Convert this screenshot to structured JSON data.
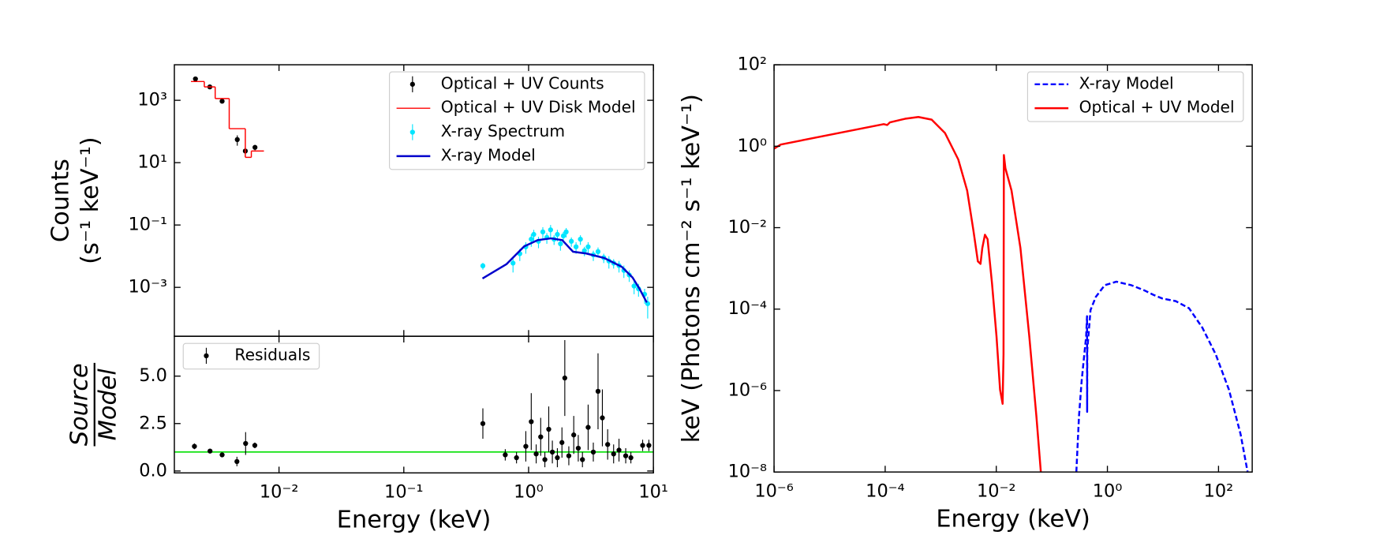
{
  "chart_data": [
    {
      "type": "errorbar",
      "xscale": "log",
      "yscale": "log",
      "xlim": [
        0.00145,
        10
      ],
      "ylim": [
        2.7e-05,
        13800
      ],
      "xticks": [
        0.01,
        0.1,
        1,
        10
      ],
      "yticks": [
        {
          "value": 0.001,
          "label": "10⁻³"
        },
        {
          "value": 0.1,
          "label": "10⁻¹"
        },
        {
          "value": 10,
          "label": "10¹"
        },
        {
          "value": 1000,
          "label": "10³"
        }
      ],
      "ylabel": [
        "Counts",
        "(s⁻¹ keV⁻¹)"
      ],
      "legend": "upper right",
      "series": [
        {
          "name": "Optical + UV Counts",
          "kind": "points",
          "color": "#000000",
          "x": [
            0.00214,
            0.00279,
            0.0035,
            0.00463,
            0.00537,
            0.00642
          ],
          "values": [
            4850,
            2690,
            935,
            55,
            23.6,
            31
          ],
          "yerr": [
            600,
            300,
            100,
            20,
            8,
            6
          ]
        },
        {
          "name": "Optical + UV Disk Model",
          "kind": "step",
          "color": "#ff0000",
          "bins": [
            0.00197,
            0.00252,
            0.00308,
            0.00399,
            0.00537,
            0.006,
            0.00757
          ],
          "values": [
            4000,
            2690,
            1140,
            123,
            14.8,
            23.6
          ]
        },
        {
          "name": "X-ray Spectrum",
          "kind": "points",
          "color": "#00e5ff",
          "x": [
            0.43,
            0.75,
            0.85,
            0.95,
            1.05,
            1.1,
            1.2,
            1.3,
            1.4,
            1.5,
            1.6,
            1.7,
            1.8,
            1.9,
            2.0,
            2.2,
            2.4,
            2.6,
            2.8,
            3.0,
            3.3,
            3.6,
            4.0,
            4.4,
            4.8,
            5.3,
            5.8,
            6.4,
            7.0,
            7.6,
            8.5,
            9.0
          ],
          "values": [
            0.0049,
            0.006,
            0.012,
            0.02,
            0.035,
            0.05,
            0.03,
            0.06,
            0.04,
            0.07,
            0.035,
            0.05,
            0.025,
            0.045,
            0.06,
            0.03,
            0.02,
            0.035,
            0.015,
            0.02,
            0.011,
            0.014,
            0.009,
            0.007,
            0.006,
            0.005,
            0.0035,
            0.0025,
            0.0011,
            0.0009,
            0.0006,
            0.0003
          ],
          "yerr": [
            0.0012,
            0.003,
            0.005,
            0.008,
            0.015,
            0.02,
            0.012,
            0.025,
            0.015,
            0.03,
            0.012,
            0.02,
            0.01,
            0.015,
            0.02,
            0.01,
            0.008,
            0.012,
            0.005,
            0.008,
            0.004,
            0.005,
            0.003,
            0.003,
            0.002,
            0.002,
            0.0015,
            0.001,
            0.0005,
            0.0004,
            0.0003,
            0.0002
          ]
        },
        {
          "name": "X-ray Model",
          "kind": "line",
          "color": "#0000cc",
          "x": [
            0.427,
            0.664,
            0.921,
            1.18,
            1.51,
            1.86,
            2.27,
            2.9,
            4.03,
            5.59,
            6.81,
            7.77,
            8.85
          ],
          "values": [
            0.00193,
            0.00553,
            0.0206,
            0.0327,
            0.0373,
            0.0327,
            0.0139,
            0.0122,
            0.00877,
            0.00454,
            0.00206,
            0.000877,
            0.000327
          ]
        }
      ]
    },
    {
      "type": "errorbar",
      "xscale": "log",
      "yscale": "linear",
      "xlim": [
        0.00145,
        10
      ],
      "ylim": [
        -0.1,
        7.1
      ],
      "xticks": [
        {
          "value": 0.01,
          "label": "10⁻²"
        },
        {
          "value": 0.1,
          "label": "10⁻¹"
        },
        {
          "value": 1,
          "label": "10⁰"
        },
        {
          "value": 10,
          "label": "10¹"
        }
      ],
      "yticks": [
        {
          "value": 0,
          "label": "0.0"
        },
        2.5,
        {
          "value": 5,
          "label": "5.0"
        }
      ],
      "xlabel": "Energy (keV)",
      "ylabel": {
        "numerator": "Source",
        "denominator": "Model"
      },
      "legend": "upper left",
      "hline": 1,
      "hline_color": "#00e000",
      "series": [
        {
          "name": "Residuals",
          "kind": "points",
          "color": "#000000",
          "x": [
            0.0021,
            0.0028,
            0.0035,
            0.0046,
            0.0054,
            0.0064,
            0.43,
            0.65,
            0.8,
            0.95,
            1.05,
            1.15,
            1.25,
            1.35,
            1.45,
            1.55,
            1.7,
            1.85,
            1.95,
            2.1,
            2.3,
            2.5,
            2.7,
            3.0,
            3.3,
            3.6,
            3.9,
            4.3,
            4.8,
            5.3,
            6.0,
            6.6,
            8.2,
            9.2
          ],
          "values": [
            1.3,
            1.05,
            0.85,
            0.5,
            1.45,
            1.35,
            2.5,
            0.85,
            0.7,
            1.3,
            2.6,
            0.9,
            1.8,
            0.6,
            2.2,
            1.0,
            0.7,
            1.5,
            4.9,
            0.8,
            1.9,
            1.2,
            0.6,
            2.3,
            1.0,
            4.2,
            2.8,
            1.4,
            0.9,
            1.1,
            0.8,
            0.7,
            1.35,
            1.35
          ],
          "yerr": [
            0.15,
            0.1,
            0.1,
            0.25,
            0.6,
            0.15,
            0.8,
            0.3,
            0.3,
            0.8,
            1.5,
            0.5,
            1.0,
            0.4,
            1.2,
            0.6,
            0.5,
            0.8,
            2.0,
            0.5,
            1.0,
            0.7,
            0.4,
            1.2,
            0.5,
            2.0,
            1.5,
            0.8,
            0.5,
            0.6,
            0.4,
            0.3,
            0.3,
            0.3
          ]
        }
      ]
    },
    {
      "type": "line",
      "xscale": "log",
      "yscale": "log",
      "xlim": [
        1e-06,
        404
      ],
      "ylim": [
        1e-08,
        100
      ],
      "xticks": [
        {
          "value": 1e-06,
          "label": "10⁻⁶"
        },
        {
          "value": 0.0001,
          "label": "10⁻⁴"
        },
        {
          "value": 0.01,
          "label": "10⁻²"
        },
        {
          "value": 1,
          "label": "10⁰"
        },
        {
          "value": 100,
          "label": "10²"
        }
      ],
      "yticks": [
        {
          "value": 1e-08,
          "label": "10⁻⁸"
        },
        {
          "value": 1e-06,
          "label": "10⁻⁶"
        },
        {
          "value": 0.0001,
          "label": "10⁻⁴"
        },
        {
          "value": 0.01,
          "label": "10⁻²"
        },
        {
          "value": 1,
          "label": "10⁰"
        },
        {
          "value": 100,
          "label": "10²"
        }
      ],
      "xlabel": "Energy (keV)",
      "ylabel": "keV (Photons cm⁻² s⁻¹ keV⁻¹)",
      "legend": "upper right",
      "series": [
        {
          "name": "X-ray Model",
          "color": "#0000ff",
          "linestyle": "dashed",
          "x": [
            0.276,
            0.308,
            0.344,
            0.384,
            0.414,
            0.43,
            0.432,
            0.434,
            0.497,
            0.62,
            0.895,
            1.45,
            2.7,
            4.69,
            6.78,
            9.78,
            17.0,
            29.5,
            51.2,
            88.9,
            154,
            249,
            334
          ],
          "values": [
            1e-08,
            2.34e-07,
            1.73e-06,
            7.78e-06,
            2.12e-05,
            6.7e-05,
            3e-07,
            1e-05,
            9.5e-05,
            0.000201,
            0.000386,
            0.000472,
            0.000386,
            0.000286,
            0.000223,
            0.000182,
            0.000157,
            0.000105,
            3.49e-05,
            7.78e-06,
            1.05e-06,
            8.6e-08,
            1e-08
          ]
        },
        {
          "name": "Optical + UV Model",
          "color": "#ff0000",
          "linestyle": "solid",
          "x": [
            9.86e-07,
            1.32e-06,
            9.42e-05,
            0.000109,
            0.000122,
            0.000228,
            0.000396,
            0.000687,
            0.00119,
            0.00207,
            0.00299,
            0.00387,
            0.00466,
            0.0052,
            0.0056,
            0.00625,
            0.00697,
            0.00838,
            0.0101,
            0.0117,
            0.013,
            0.0135,
            0.0137,
            0.0146,
            0.0188,
            0.0272,
            0.0393,
            0.0527,
            0.0634
          ],
          "values": [
            0.861,
            1.1,
            3.49,
            3.32,
            3.86,
            4.72,
            5.22,
            4.49,
            2.12,
            0.472,
            0.0818,
            0.00861,
            0.00149,
            0.00129,
            0.00316,
            0.0067,
            0.00521,
            0.000427,
            2.12e-05,
            1.05e-06,
            4.72e-07,
            7.78e-06,
            0.607,
            0.286,
            0.0818,
            0.00316,
            2.12e-05,
            2.34e-07,
            1e-08
          ]
        }
      ]
    }
  ]
}
